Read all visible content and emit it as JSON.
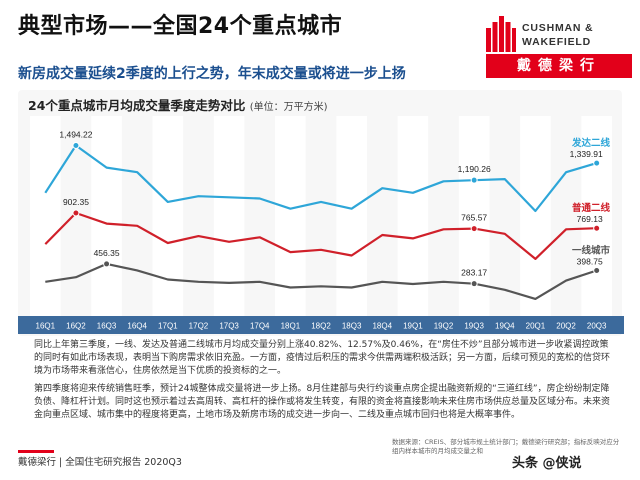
{
  "header": {
    "title": "典型市场——全国24个重点城市",
    "subtitle": "新房成交量延续2季度的上行之势，年末成交量或将进一步上扬"
  },
  "logo": {
    "line1": "CUSHMAN &",
    "line2": "WAKEFIELD",
    "band": "戴德梁行",
    "brand_color": "#e2001a"
  },
  "chart_data": {
    "type": "line",
    "title": "24个重点城市月均成交量季度走势对比",
    "unit": "(单位：万平方米)",
    "categories": [
      "16Q1",
      "16Q2",
      "16Q3",
      "16Q4",
      "17Q1",
      "17Q2",
      "17Q3",
      "17Q4",
      "18Q1",
      "18Q2",
      "18Q3",
      "18Q4",
      "19Q1",
      "19Q2",
      "19Q3",
      "19Q4",
      "20Q1",
      "20Q2",
      "20Q3"
    ],
    "ylim": [
      0,
      1700
    ],
    "series": [
      {
        "name": "发达二线",
        "color": "#2ea6d8",
        "label_end": "1,339.91",
        "values": [
          1080,
          1494.22,
          1300,
          1260,
          1000,
          1050,
          1040,
          1030,
          940,
          1000,
          940,
          1120,
          1080,
          1180,
          1190.26,
          1200,
          920,
          1260,
          1339.91
        ]
      },
      {
        "name": "普通二线",
        "color": "#d0202a",
        "label_end": "769.13",
        "values": [
          630,
          902.35,
          810,
          790,
          640,
          700,
          650,
          690,
          560,
          580,
          530,
          710,
          680,
          760,
          765.57,
          720,
          500,
          760,
          769.13
        ]
      },
      {
        "name": "一线城市",
        "color": "#555555",
        "label_end": "398.75",
        "values": [
          300,
          340,
          456.35,
          400,
          320,
          300,
          290,
          300,
          250,
          260,
          250,
          300,
          280,
          300,
          283.17,
          230,
          150,
          310,
          398.75
        ]
      }
    ],
    "data_labels": [
      {
        "series": 0,
        "index": 1,
        "text": "1,494.22"
      },
      {
        "series": 0,
        "index": 14,
        "text": "1,190.26"
      },
      {
        "series": 0,
        "index": 18,
        "text": "1,339.91"
      },
      {
        "series": 1,
        "index": 1,
        "text": "902.35"
      },
      {
        "series": 1,
        "index": 14,
        "text": "765.57"
      },
      {
        "series": 1,
        "index": 18,
        "text": "769.13"
      },
      {
        "series": 2,
        "index": 2,
        "text": "456.35"
      },
      {
        "series": 2,
        "index": 14,
        "text": "283.17"
      },
      {
        "series": 2,
        "index": 18,
        "text": "398.75"
      }
    ],
    "axis_color": "#3c6a9c"
  },
  "body": {
    "para1": "同比上年第三季度，一线、发达及普通二线城市月均成交量分别上涨40.82%、12.57%及0.46%，在“房住不炒”且部分城市进一步收紧调控政策的同时有如此市场表现，表明当下购房需求依旧充盈。一方面，疫情过后积压的需求今供需两端积极活跃；另一方面，后续可预见的宽松的信贷环境为市场带来看涨信心，住房依然是当下优质的投资标的之一。",
    "para2": "第四季度将迎来传统销售旺季，预计24城整体成交量将进一步上扬。8月住建部与央行约谈重点房企提出融资新规的“三道红线”，房企纷纷制定降负债、降杠杆计划。同时这也预示着过去高周转、高杠杆的操作或将发生转变，有限的资金将直接影响未来住房市场供应总量及区域分布。未来资金向重点区域、城市集中的程度将更高，土地市场及新房市场的成交进一步向一、二线及重点城市回归也将是大概率事件。"
  },
  "source": "数据来源：CREIS、部分城市规土统计部门；戴德梁行研究部；指标反映对应分组内样本城市的月均成交量之和",
  "footer": {
    "text": "戴德梁行 | 全国住宅研究报告 2020Q3",
    "bar_color": "#e2001a"
  },
  "watermark": "头条 @侠说"
}
